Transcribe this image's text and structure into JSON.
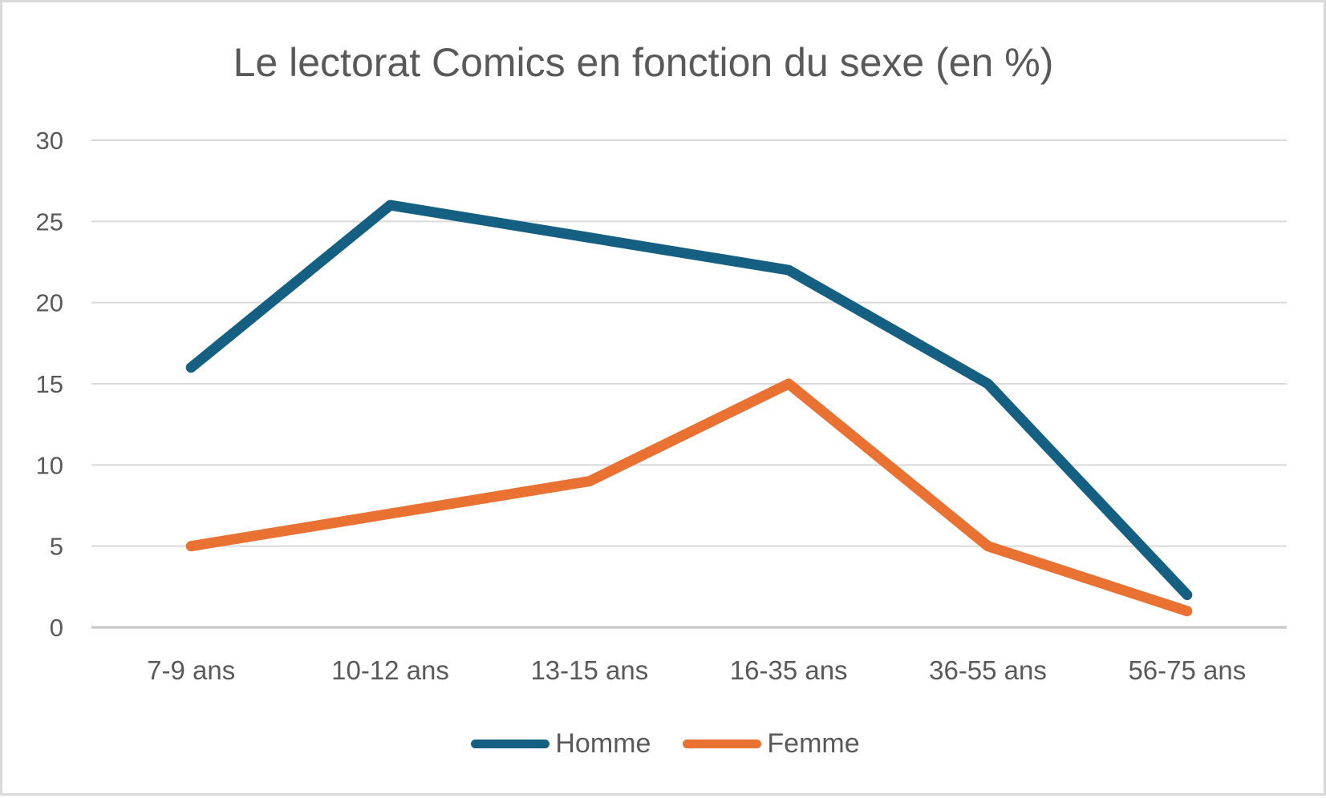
{
  "chart_data": {
    "type": "line",
    "title": "Le lectorat Comics en fonction du sexe (en %)",
    "categories": [
      "7-9 ans",
      "10-12 ans",
      "13-15 ans",
      "16-35 ans",
      "36-55 ans",
      "56-75 ans"
    ],
    "series": [
      {
        "name": "Homme",
        "color": "#156082",
        "values": [
          16,
          26,
          24,
          22,
          15,
          2
        ]
      },
      {
        "name": "Femme",
        "color": "#E97132",
        "values": [
          5,
          7,
          9,
          15,
          5,
          1
        ]
      }
    ],
    "xlabel": "",
    "ylabel": "",
    "ylim": [
      0,
      30
    ],
    "yticks": [
      30,
      25,
      20,
      15,
      10,
      5,
      0
    ],
    "grid": true,
    "legend_position": "bottom",
    "styles": {
      "text_color": "#595959",
      "gridline_color": "#D9D9D9",
      "axis_line_color": "#CBCBCB",
      "background_color": "#FFFFFF",
      "frame_border_color": "#D9D9D9"
    }
  }
}
